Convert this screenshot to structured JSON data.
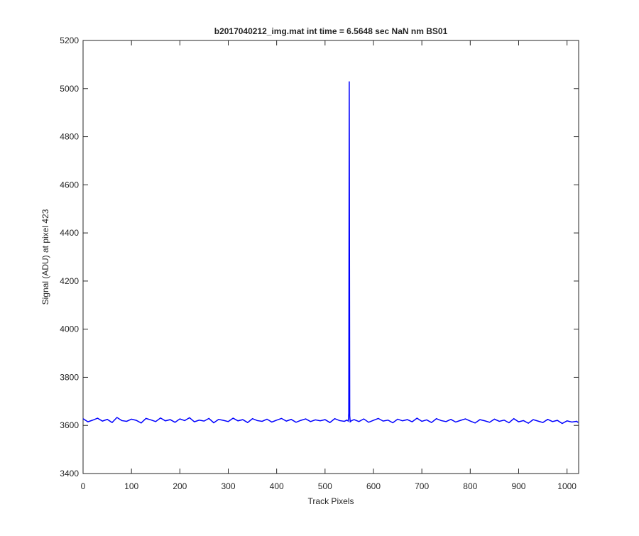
{
  "chart_data": {
    "type": "line",
    "title": "b2017040212_img.mat int time = 6.5648 sec  NaN nm BS01",
    "x_label": "Track Pixels",
    "y_label": "Signal (ADU) at pixel 423",
    "x": [
      0,
      10,
      20,
      30,
      40,
      50,
      60,
      70,
      80,
      90,
      100,
      110,
      120,
      130,
      140,
      150,
      160,
      170,
      180,
      190,
      200,
      210,
      220,
      230,
      240,
      250,
      260,
      270,
      280,
      290,
      300,
      310,
      320,
      330,
      340,
      350,
      360,
      370,
      380,
      390,
      400,
      410,
      420,
      430,
      440,
      450,
      460,
      470,
      480,
      490,
      500,
      510,
      520,
      530,
      540,
      545,
      548,
      549,
      550,
      551,
      552,
      555,
      560,
      570,
      580,
      590,
      600,
      610,
      620,
      630,
      640,
      650,
      660,
      670,
      680,
      690,
      700,
      710,
      720,
      730,
      740,
      750,
      760,
      770,
      780,
      790,
      800,
      810,
      820,
      830,
      840,
      850,
      860,
      870,
      880,
      890,
      900,
      910,
      920,
      930,
      940,
      950,
      960,
      970,
      980,
      990,
      1000,
      1010,
      1020,
      1023
    ],
    "series": [
      {
        "name": "signal",
        "color": "#0000ff",
        "values": [
          3628,
          3615,
          3622,
          3630,
          3618,
          3625,
          3612,
          3633,
          3620,
          3617,
          3626,
          3621,
          3610,
          3629,
          3623,
          3616,
          3631,
          3619,
          3624,
          3613,
          3627,
          3620,
          3632,
          3615,
          3622,
          3618,
          3629,
          3611,
          3625,
          3621,
          3616,
          3630,
          3619,
          3624,
          3612,
          3628,
          3620,
          3617,
          3626,
          3614,
          3622,
          3629,
          3618,
          3625,
          3613,
          3621,
          3627,
          3616,
          3623,
          3619,
          3624,
          3612,
          3628,
          3620,
          3617,
          3622,
          3618,
          3650,
          5030,
          3640,
          3615,
          3620,
          3624,
          3616,
          3627,
          3613,
          3621,
          3629,
          3618,
          3622,
          3611,
          3626,
          3619,
          3624,
          3615,
          3630,
          3617,
          3623,
          3612,
          3628,
          3620,
          3616,
          3625,
          3614,
          3621,
          3627,
          3618,
          3610,
          3624,
          3619,
          3613,
          3626,
          3617,
          3622,
          3611,
          3628,
          3615,
          3620,
          3609,
          3624,
          3618,
          3612,
          3625,
          3616,
          3621,
          3608,
          3619,
          3614,
          3617,
          3612
        ]
      }
    ],
    "xlim": [
      0,
      1024
    ],
    "xticks": [
      0,
      100,
      200,
      300,
      400,
      500,
      600,
      700,
      800,
      900,
      1000
    ],
    "ylim": [
      3400,
      5200
    ],
    "yticks": [
      3400,
      3600,
      3800,
      4000,
      4200,
      4400,
      4600,
      4800,
      5000,
      5200
    ]
  }
}
